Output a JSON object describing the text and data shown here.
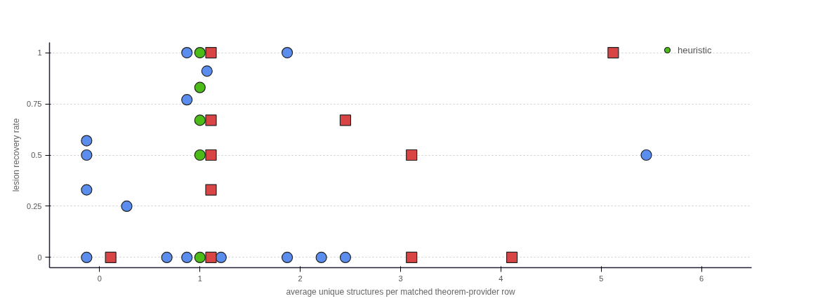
{
  "chart_data": {
    "type": "scatter",
    "xlabel": "average unique structures per matched theorem-provider row",
    "ylabel": "lesion recovery rate",
    "xlim": [
      -0.5,
      6.5
    ],
    "xticks": [
      0,
      1,
      2,
      3,
      4,
      5,
      6
    ],
    "ylim": [
      -0.05,
      1.05
    ],
    "yticks": [
      0,
      0.25,
      0.5,
      0.75,
      1
    ],
    "grid": "y",
    "legend": "top right",
    "series": [
      {
        "color": "#5b8def",
        "marker": "circle",
        "x": [
          0.87,
          1.87,
          1.07,
          0.87,
          -0.13,
          -0.13,
          -0.13,
          0.27,
          5.45,
          -0.13,
          0.67,
          0.87,
          1.21,
          1.87,
          2.21,
          2.45
        ],
        "values": [
          1,
          1,
          0.91,
          0.77,
          0.57,
          0.5,
          0.33,
          0.25,
          0.5,
          0,
          0,
          0,
          0,
          0,
          0,
          0
        ]
      },
      {
        "name": "heuristic",
        "color": "#4cbb17",
        "marker": "circle",
        "x": [
          1,
          1,
          1,
          1,
          1
        ],
        "values": [
          1,
          0.83,
          0.67,
          0.5,
          0
        ]
      },
      {
        "color": "#d94545",
        "marker": "square",
        "x": [
          1.11,
          5.12,
          1.11,
          2.45,
          1.11,
          3.11,
          1.11,
          0.11,
          1.11,
          3.11,
          4.11
        ],
        "values": [
          1,
          1,
          0.67,
          0.67,
          0.5,
          0.5,
          0.33,
          0,
          0,
          0,
          0
        ]
      }
    ]
  }
}
